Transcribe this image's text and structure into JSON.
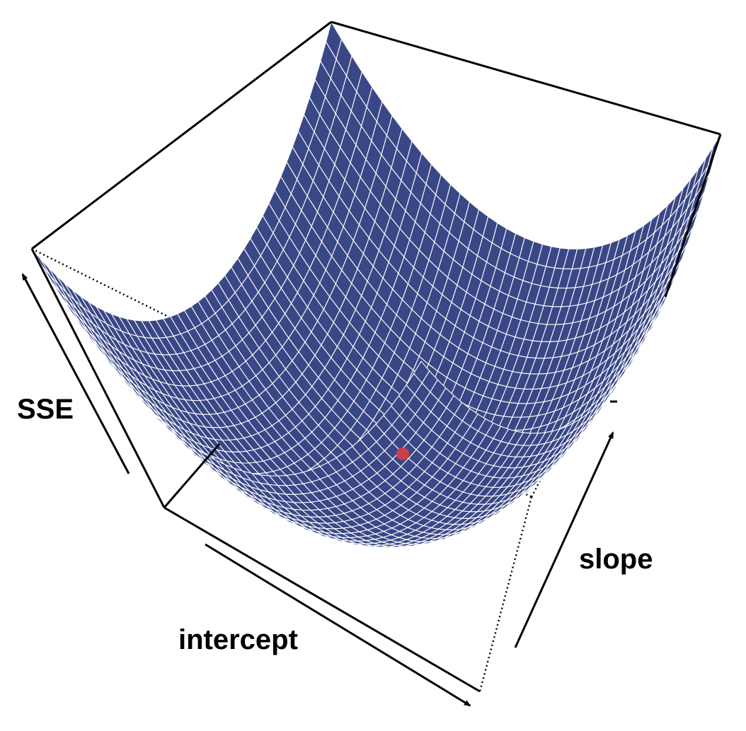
{
  "chart_data": {
    "type": "surface",
    "title": "",
    "axes": {
      "x": "intercept",
      "y": "slope",
      "z": "SSE"
    },
    "surface": {
      "shape": "convex paraboloid (bowl)",
      "grid": "white mesh lines",
      "color": "#3a4786"
    },
    "minimum_point": {
      "color": "#c9404a"
    },
    "box": true,
    "ticks": false
  }
}
